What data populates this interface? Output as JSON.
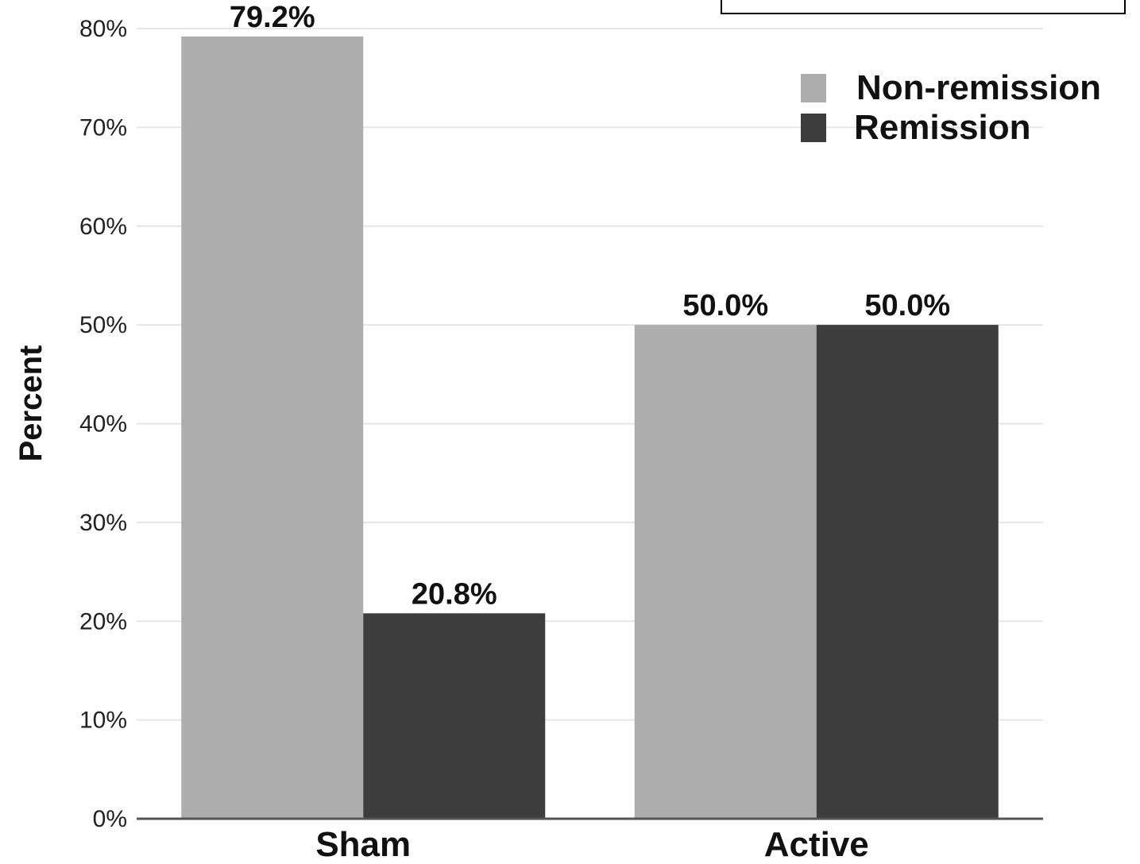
{
  "chart_data": {
    "type": "bar",
    "categories": [
      "Sham",
      "Active"
    ],
    "series": [
      {
        "name": "Non-remission",
        "values": [
          79.2,
          50.0
        ],
        "color": "#adadad"
      },
      {
        "name": "Remission",
        "values": [
          20.8,
          50.0
        ],
        "color": "#3d3d3d"
      }
    ],
    "data_labels": [
      [
        "79.2%",
        "50.0%"
      ],
      [
        "20.8%",
        "50.0%"
      ]
    ],
    "ylabel": "Percent",
    "xlabel": "",
    "ylim": [
      0,
      80
    ],
    "yticks": [
      "0%",
      "10%",
      "20%",
      "30%",
      "40%",
      "50%",
      "60%",
      "70%",
      "80%"
    ],
    "grid": true,
    "legend_position": "top-right"
  }
}
